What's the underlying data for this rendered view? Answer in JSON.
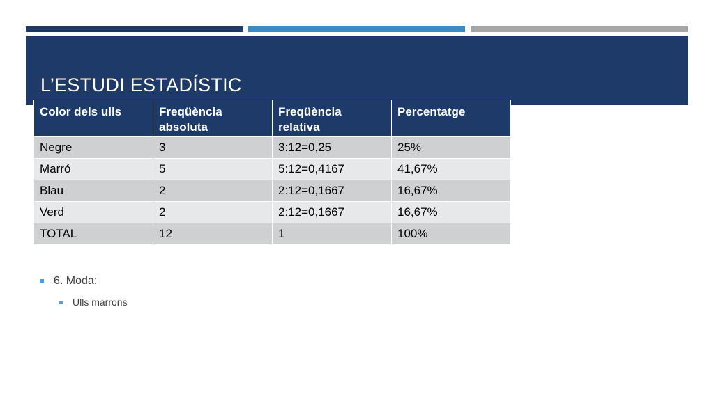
{
  "colors": {
    "bar_dark": "#1f3864",
    "bar_mid": "#3d8bc4",
    "bar_light": "#a6a6a6",
    "title_band": "#1e3a68",
    "header_bg": "#1e3a68",
    "row_odd": "#cfd0d2",
    "row_even": "#e7e8ea",
    "bullet": "#5b9bd5"
  },
  "slide": {
    "title": "L’ESTUDI ESTADÍSTIC"
  },
  "table": {
    "headers": [
      "Color dels ulls",
      "Freqüència absoluta",
      "Freqüència relativa",
      "Percentatge"
    ],
    "rows": [
      [
        "Negre",
        "3",
        "3:12=0,25",
        "25%"
      ],
      [
        "Marró",
        "5",
        "5:12=0,4167",
        "41,67%"
      ],
      [
        "Blau",
        "2",
        "2:12=0,1667",
        "16,67%"
      ],
      [
        "Verd",
        "2",
        "2:12=0,1667",
        "16,67%"
      ],
      [
        "TOTAL",
        "12",
        "1",
        "100%"
      ]
    ]
  },
  "bullets": {
    "level1": "6. Moda:",
    "level2": "Ulls marrons"
  }
}
